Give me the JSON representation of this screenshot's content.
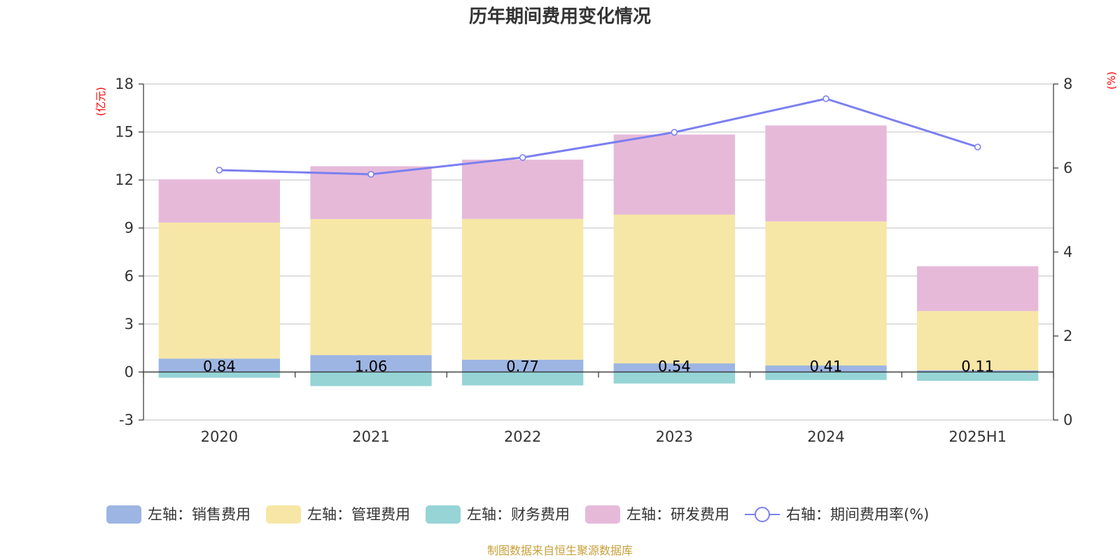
{
  "chart_data": {
    "type": "bar",
    "title": "历年期间费用变化情况",
    "categories": [
      "2020",
      "2021",
      "2022",
      "2023",
      "2024",
      "2025H1"
    ],
    "left_axis": {
      "unit": "(亿元)",
      "ylim": [
        -3,
        18
      ],
      "ticks": [
        "-3",
        "0",
        "3",
        "6",
        "9",
        "12",
        "15",
        "18"
      ]
    },
    "right_axis": {
      "unit": "(%)",
      "ylim": [
        0,
        8
      ],
      "ticks": [
        "0",
        "2",
        "4",
        "6",
        "8"
      ]
    },
    "series": [
      {
        "name": "左轴：销售费用",
        "axis": "left",
        "color": "#9db5e2",
        "values": [
          0.84,
          1.06,
          0.77,
          0.54,
          0.41,
          0.11
        ],
        "labels": [
          "0.84",
          "1.06",
          "0.77",
          "0.54",
          "0.41",
          "0.11"
        ]
      },
      {
        "name": "左轴：管理费用",
        "axis": "left",
        "color": "#f7e7a6",
        "values": [
          8.5,
          8.5,
          8.8,
          9.3,
          9.0,
          3.7
        ]
      },
      {
        "name": "左轴：财务费用",
        "axis": "left",
        "color": "#96d4d6",
        "values": [
          -0.36,
          -0.88,
          -0.84,
          -0.72,
          -0.5,
          -0.55
        ]
      },
      {
        "name": "左轴：研发费用",
        "axis": "left",
        "color": "#e6b9d9",
        "values": [
          2.7,
          3.3,
          3.7,
          5.0,
          6.0,
          2.8
        ]
      },
      {
        "name": "右轴：期间费用率(%)",
        "axis": "right",
        "type": "line",
        "color": "#7b7ff0",
        "values": [
          5.95,
          5.85,
          6.25,
          6.85,
          7.65,
          6.5
        ]
      }
    ],
    "grid": true,
    "legend": "bottom"
  },
  "source_note": "制图数据来自恒生聚源数据库"
}
